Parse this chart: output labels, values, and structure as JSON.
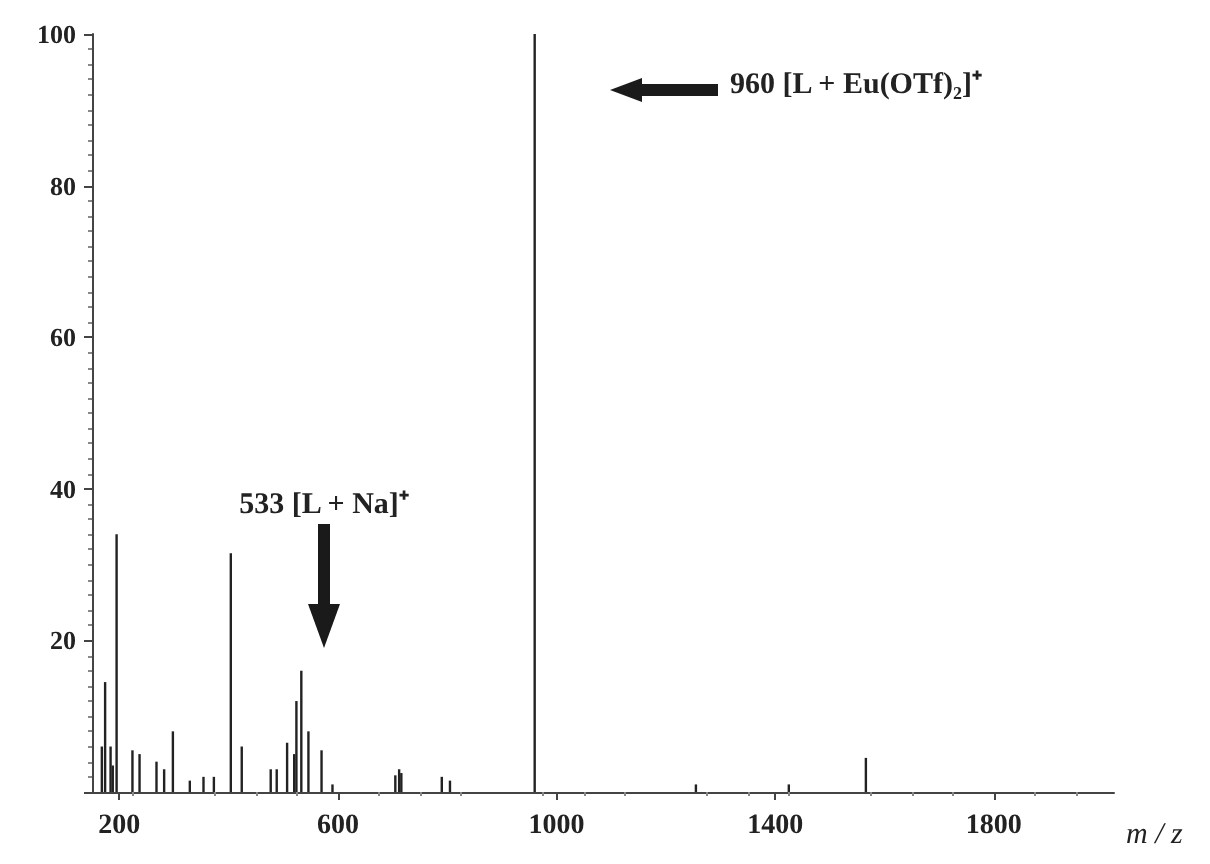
{
  "chart_data": {
    "type": "bar",
    "x": [
      168,
      174,
      184,
      188,
      195,
      224,
      237,
      268,
      282,
      298,
      329,
      354,
      373,
      404,
      424,
      477,
      488,
      507,
      520,
      524,
      533,
      546,
      570,
      590,
      705,
      712,
      716,
      790,
      805,
      960,
      1255,
      1425,
      1566
    ],
    "values": [
      6,
      14.5,
      6,
      3.5,
      34,
      5.5,
      5,
      4,
      3,
      8,
      1.5,
      2,
      2,
      31.5,
      6,
      3,
      3,
      6.5,
      5,
      12,
      16,
      8,
      5.5,
      1,
      2.2,
      3,
      2.5,
      2,
      1.5,
      100,
      1,
      1,
      4.5
    ],
    "color": "#222222",
    "xlabel": "m / z",
    "xlim": [
      150,
      2020
    ],
    "xticks": [
      200,
      600,
      1000,
      1400,
      1800
    ],
    "ylim": [
      0,
      100
    ],
    "yticks": [
      {
        "value": 0,
        "label": null
      },
      20,
      40,
      60,
      80,
      100
    ],
    "grid": false,
    "annotations": [
      "960 [L + Eu(OTf)₂]⁺",
      "533 [L + Na]⁺"
    ]
  }
}
